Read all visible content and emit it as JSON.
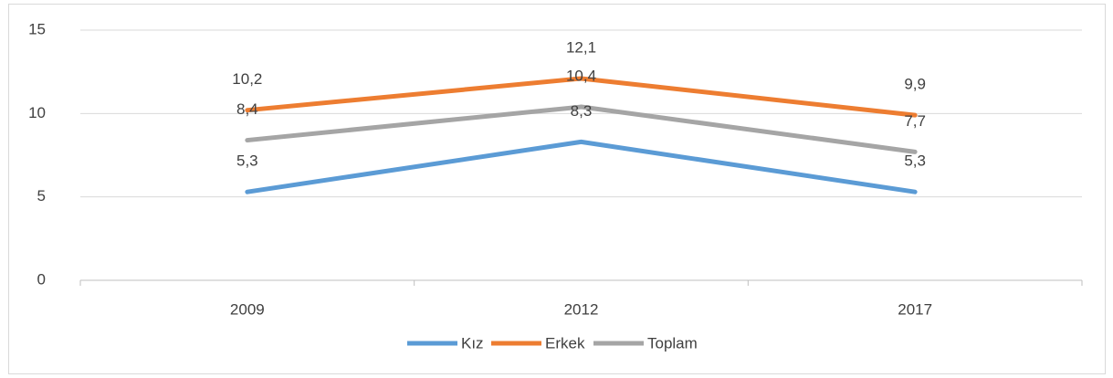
{
  "chart_data": {
    "type": "line",
    "categories": [
      "2009",
      "2012",
      "2017"
    ],
    "series": [
      {
        "name": "Kız",
        "color": "#5b9bd5",
        "values": [
          5.3,
          8.3,
          5.3
        ],
        "value_labels": [
          "5,3",
          "8,3",
          "5,3"
        ]
      },
      {
        "name": "Erkek",
        "color": "#ed7d31",
        "values": [
          10.2,
          12.1,
          9.9
        ],
        "value_labels": [
          "10,2",
          "12,1",
          "9,9"
        ]
      },
      {
        "name": "Toplam",
        "color": "#a5a5a5",
        "values": [
          8.4,
          10.4,
          7.7
        ],
        "value_labels": [
          "8,4",
          "10,4",
          "7,7"
        ]
      }
    ],
    "ylim": [
      0,
      15
    ],
    "yticks": [
      0,
      5,
      10,
      15
    ],
    "grid": true,
    "legend": "bottom"
  }
}
